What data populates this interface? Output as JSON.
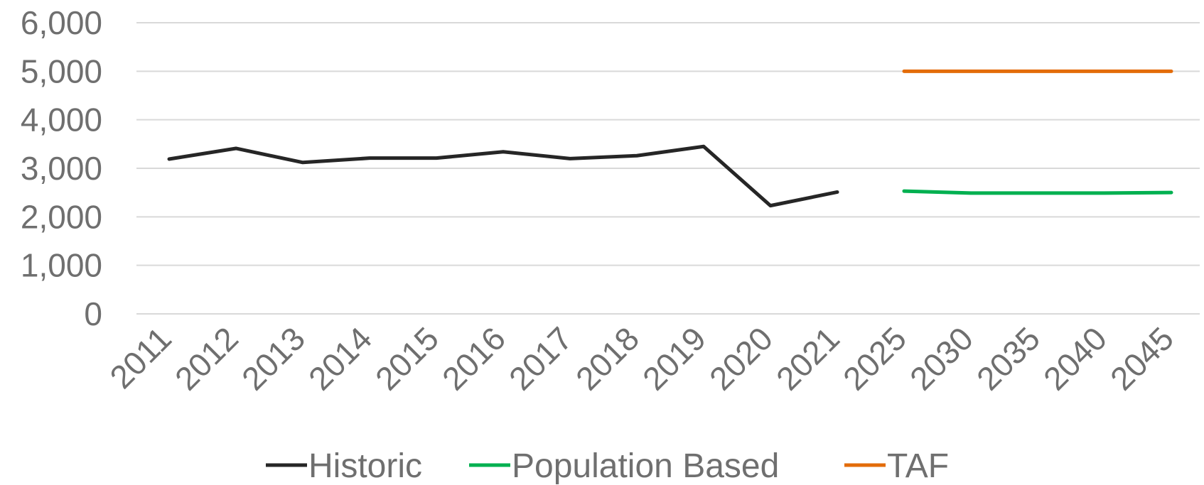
{
  "chart_data": {
    "type": "line",
    "categories": [
      "2011",
      "2012",
      "2013",
      "2014",
      "2015",
      "2016",
      "2017",
      "2018",
      "2019",
      "2020",
      "2021",
      "2025",
      "2030",
      "2035",
      "2040",
      "2045"
    ],
    "ylim": [
      0,
      6000
    ],
    "yticks": [
      "0",
      "1,000",
      "2,000",
      "3,000",
      "4,000",
      "5,000",
      "6,000"
    ],
    "ytick_values": [
      0,
      1000,
      2000,
      3000,
      4000,
      5000,
      6000
    ],
    "grid": true,
    "legend_position": "bottom",
    "series": [
      {
        "name": "Historic",
        "color": "#262626",
        "values": [
          3190,
          3410,
          3120,
          3210,
          3210,
          3340,
          3200,
          3260,
          3450,
          2230,
          2510,
          null,
          null,
          null,
          null,
          null
        ]
      },
      {
        "name": "Population Based",
        "color": "#00b050",
        "values": [
          null,
          null,
          null,
          null,
          null,
          null,
          null,
          null,
          null,
          null,
          null,
          2530,
          2490,
          2490,
          2490,
          2500
        ]
      },
      {
        "name": "TAF",
        "color": "#e36c09",
        "values": [
          null,
          null,
          null,
          null,
          null,
          null,
          null,
          null,
          null,
          null,
          null,
          5000,
          5000,
          5000,
          5000,
          5000
        ]
      }
    ]
  }
}
